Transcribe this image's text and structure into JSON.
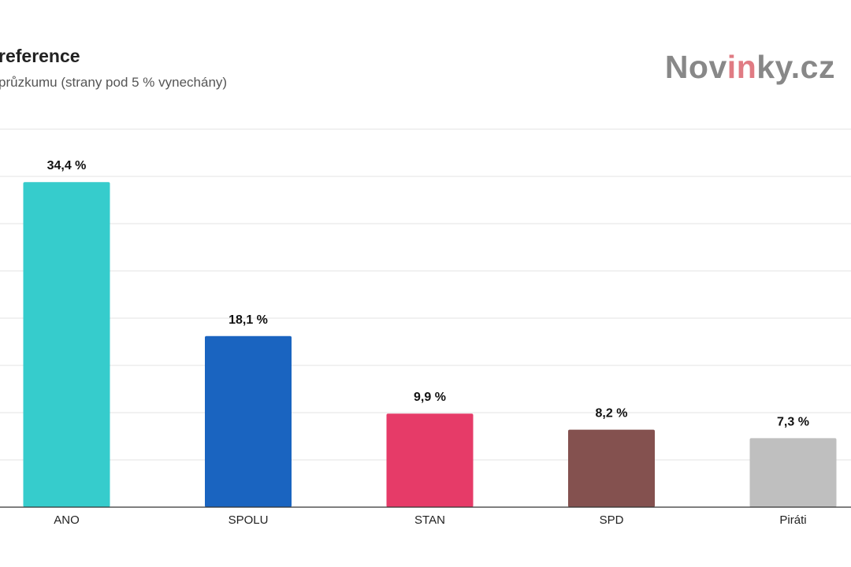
{
  "header": {
    "title": "reference",
    "subtitle": "průzkumu (strany pod 5 % vynechány)"
  },
  "logo": {
    "part1": "Nov",
    "highlight": "in",
    "part2": "ky.cz"
  },
  "chart_data": {
    "type": "bar",
    "title": "reference",
    "subtitle": "průzkumu (strany pod 5 % vynechány)",
    "xlabel": "",
    "ylabel": "",
    "ylim": [
      0,
      40
    ],
    "grid": true,
    "categories": [
      "ANO",
      "SPOLU",
      "STAN",
      "SPD",
      "Piráti"
    ],
    "values": [
      34.4,
      18.1,
      9.9,
      8.2,
      7.3
    ],
    "value_labels": [
      "34,4 %",
      "18,1 %",
      "9,9 %",
      "8,2 %",
      "7,3 %"
    ],
    "colors": [
      "#36cccc",
      "#1a64c0",
      "#e63b68",
      "#84514f",
      "#bfbfbf"
    ]
  }
}
